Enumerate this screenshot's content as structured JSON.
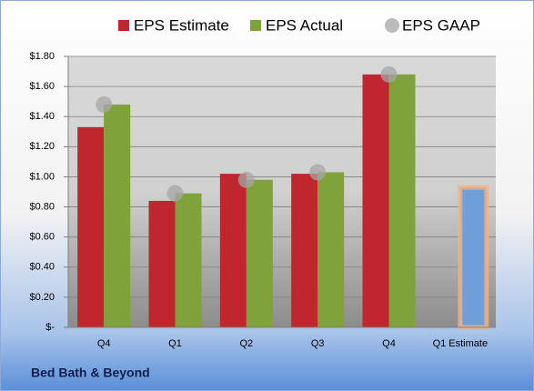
{
  "chart_data": {
    "type": "bar",
    "footer": "Bed Bath & Beyond",
    "categories": [
      "Q4",
      "Q1",
      "Q2",
      "Q3",
      "Q4",
      "Q1 Estimate"
    ],
    "series": [
      {
        "name": "EPS Estimate",
        "color": "#c0262d",
        "values": [
          1.33,
          0.84,
          1.02,
          1.02,
          1.68,
          null
        ]
      },
      {
        "name": "EPS Actual",
        "color": "#7fa23a",
        "values": [
          1.48,
          0.89,
          0.98,
          1.03,
          1.68,
          0.93
        ],
        "point_colors": [
          null,
          null,
          null,
          null,
          null,
          "#6f9fd8"
        ]
      },
      {
        "name": "EPS GAAP",
        "color": "#a6a6a6",
        "marker": "circle",
        "values": [
          1.48,
          0.89,
          0.98,
          1.03,
          1.68,
          null
        ]
      }
    ],
    "ylim": [
      0,
      1.8
    ],
    "yticks": [
      {
        "value": 0,
        "label": "$-"
      },
      {
        "value": 0.2,
        "label": "$0.20"
      },
      {
        "value": 0.4,
        "label": "$0.40"
      },
      {
        "value": 0.6,
        "label": "$0.60"
      },
      {
        "value": 0.8,
        "label": "$0.80"
      },
      {
        "value": 1.0,
        "label": "$1.00"
      },
      {
        "value": 1.2,
        "label": "$1.20"
      },
      {
        "value": 1.4,
        "label": "$1.40"
      },
      {
        "value": 1.6,
        "label": "$1.60"
      },
      {
        "value": 1.8,
        "label": "$1.80"
      }
    ],
    "grid": true
  }
}
